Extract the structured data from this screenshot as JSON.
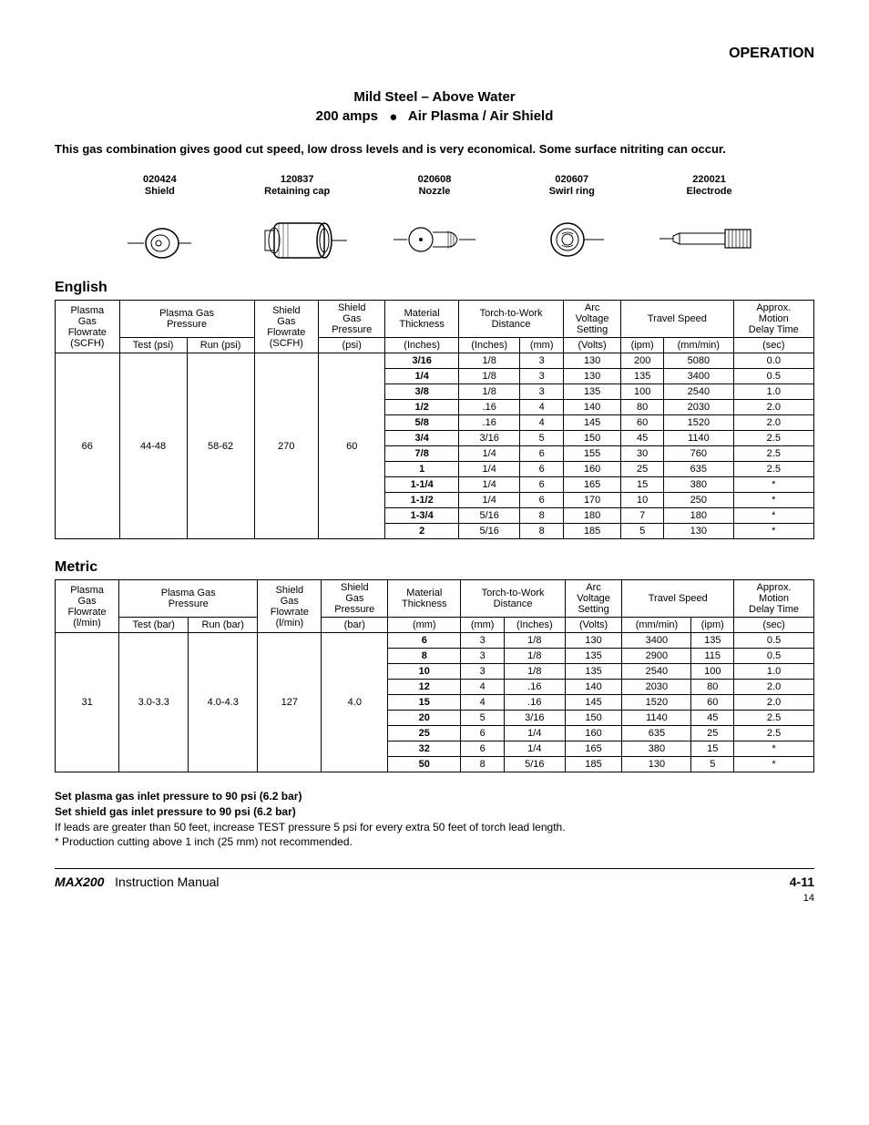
{
  "header": {
    "section": "OPERATION"
  },
  "title": {
    "line1": "Mild Steel – Above Water",
    "line2a": "200 amps",
    "line2b": "Air Plasma / Air Shield"
  },
  "intro": "This gas combination gives good cut speed, low dross levels and is very economical. Some surface nitriting can occur.",
  "parts": [
    {
      "num": "020424",
      "name": "Shield"
    },
    {
      "num": "120837",
      "name": "Retaining cap"
    },
    {
      "num": "020608",
      "name": "Nozzle"
    },
    {
      "num": "020607",
      "name": "Swirl ring"
    },
    {
      "num": "220021",
      "name": "Electrode"
    }
  ],
  "english": {
    "heading": "English",
    "headers": {
      "h1": "Plasma Gas Flowrate (SCFH)",
      "h2": "Plasma Gas Pressure",
      "h3": "Shield Gas Flowrate (SCFH)",
      "h4": "Shield Gas Pressure",
      "h5": "Material Thickness",
      "h6": "Torch-to-Work Distance",
      "h7": "Arc Voltage Setting",
      "h8": "Travel Speed",
      "h9": "Approx. Motion Delay Time",
      "u_test": "Test (psi)",
      "u_run": "Run (psi)",
      "u_sgp": "(psi)",
      "u_mt": "(Inches)",
      "u_in": "(Inches)",
      "u_mm": "(mm)",
      "u_v": "(Volts)",
      "u_ipm": "(ipm)",
      "u_mmmin": "(mm/min)",
      "u_sec": "(sec)"
    },
    "fixed": {
      "pgf": "66",
      "test": "44-48",
      "run": "58-62",
      "sgf": "270",
      "sgp": "60"
    },
    "rows": [
      [
        "3/16",
        "1/8",
        "3",
        "130",
        "200",
        "5080",
        "0.0"
      ],
      [
        "1/4",
        "1/8",
        "3",
        "130",
        "135",
        "3400",
        "0.5"
      ],
      [
        "3/8",
        "1/8",
        "3",
        "135",
        "100",
        "2540",
        "1.0"
      ],
      [
        "1/2",
        ".16",
        "4",
        "140",
        "80",
        "2030",
        "2.0"
      ],
      [
        "5/8",
        ".16",
        "4",
        "145",
        "60",
        "1520",
        "2.0"
      ],
      [
        "3/4",
        "3/16",
        "5",
        "150",
        "45",
        "1140",
        "2.5"
      ],
      [
        "7/8",
        "1/4",
        "6",
        "155",
        "30",
        "760",
        "2.5"
      ],
      [
        "1",
        "1/4",
        "6",
        "160",
        "25",
        "635",
        "2.5"
      ],
      [
        "1-1/4",
        "1/4",
        "6",
        "165",
        "15",
        "380",
        "*"
      ],
      [
        "1-1/2",
        "1/4",
        "6",
        "170",
        "10",
        "250",
        "*"
      ],
      [
        "1-3/4",
        "5/16",
        "8",
        "180",
        "7",
        "180",
        "*"
      ],
      [
        "2",
        "5/16",
        "8",
        "185",
        "5",
        "130",
        "*"
      ]
    ]
  },
  "metric": {
    "heading": "Metric",
    "headers": {
      "h1": "Plasma Gas Flowrate (l/min)",
      "u_test": "Test (bar)",
      "u_run": "Run (bar)",
      "u_sgf": "Shield Gas Flowrate (l/min)",
      "u_sgp": "(bar)",
      "u_mt": "(mm)",
      "u_mm": "(mm)",
      "u_in": "(Inches)",
      "u_mmmin": "(mm/min)",
      "u_ipm": "(ipm)"
    },
    "fixed": {
      "pgf": "31",
      "test": "3.0-3.3",
      "run": "4.0-4.3",
      "sgf": "127",
      "sgp": "4.0"
    },
    "rows": [
      [
        "6",
        "3",
        "1/8",
        "130",
        "3400",
        "135",
        "0.5"
      ],
      [
        "8",
        "3",
        "1/8",
        "135",
        "2900",
        "115",
        "0.5"
      ],
      [
        "10",
        "3",
        "1/8",
        "135",
        "2540",
        "100",
        "1.0"
      ],
      [
        "12",
        "4",
        ".16",
        "140",
        "2030",
        "80",
        "2.0"
      ],
      [
        "15",
        "4",
        ".16",
        "145",
        "1520",
        "60",
        "2.0"
      ],
      [
        "20",
        "5",
        "3/16",
        "150",
        "1140",
        "45",
        "2.5"
      ],
      [
        "25",
        "6",
        "1/4",
        "160",
        "635",
        "25",
        "2.5"
      ],
      [
        "32",
        "6",
        "1/4",
        "165",
        "380",
        "15",
        "*"
      ],
      [
        "50",
        "8",
        "5/16",
        "185",
        "130",
        "5",
        "*"
      ]
    ]
  },
  "notes": {
    "n1": "Set plasma gas inlet pressure to 90 psi (6.2 bar)",
    "n2": "Set shield gas inlet pressure to 90 psi (6.2 bar)",
    "n3": "If leads are greater than 50 feet, increase TEST pressure 5 psi for every extra 50 feet of torch lead length.",
    "n4": "* Production cutting above 1 inch (25 mm) not recommended."
  },
  "footer": {
    "product": "MAX200",
    "manual": "Instruction Manual",
    "page": "4-11",
    "small": "14"
  }
}
